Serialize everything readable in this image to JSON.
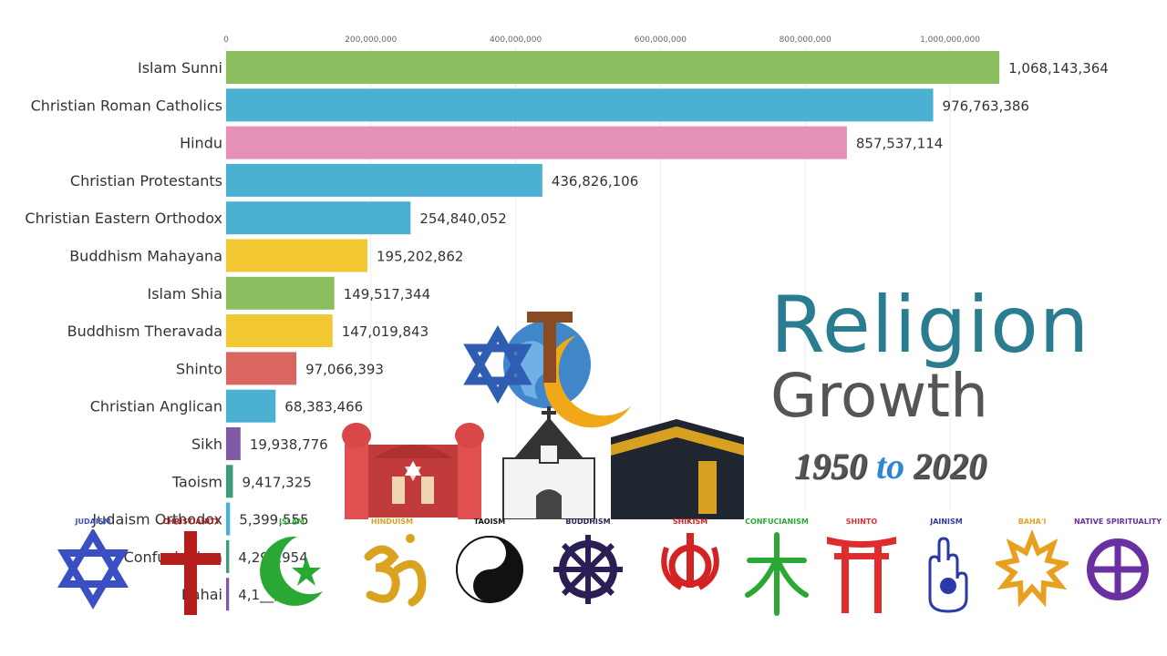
{
  "chart_data": {
    "type": "bar",
    "orientation": "horizontal",
    "title": "",
    "xlabel": "",
    "ylabel": "",
    "xlim": [
      0,
      1070000000
    ],
    "ticks": [
      {
        "value": 0,
        "label": "0"
      },
      {
        "value": 200000000,
        "label": "200,000,000"
      },
      {
        "value": 400000000,
        "label": "400,000,000"
      },
      {
        "value": 600000000,
        "label": "600,000,000"
      },
      {
        "value": 800000000,
        "label": "800,000,000"
      },
      {
        "value": 1000000000,
        "label": "1,000,000,000"
      }
    ],
    "grid": true,
    "bars": [
      {
        "category": "Islam Sunni",
        "value": 1068143364,
        "label": "1,068,143,364",
        "color": "#8cbf5f"
      },
      {
        "category": "Christian Roman Catholics",
        "value": 976763386,
        "label": "976,763,386",
        "color": "#4cb0d3"
      },
      {
        "category": "Hindu",
        "value": 857537114,
        "label": "857,537,114",
        "color": "#e590b5"
      },
      {
        "category": "Christian Protestants",
        "value": 436826106,
        "label": "436,826,106",
        "color": "#4cb0d3"
      },
      {
        "category": "Christian Eastern Orthodox",
        "value": 254840052,
        "label": "254,840,052",
        "color": "#4cb0d3"
      },
      {
        "category": "Buddhism Mahayana",
        "value": 195202862,
        "label": "195,202,862",
        "color": "#f2c832"
      },
      {
        "category": "Islam Shia",
        "value": 149517344,
        "label": "149,517,344",
        "color": "#8cbf5f"
      },
      {
        "category": "Buddhism Theravada",
        "value": 147019843,
        "label": "147,019,843",
        "color": "#f2c832"
      },
      {
        "category": "Shinto",
        "value": 97066393,
        "label": "97,066,393",
        "color": "#d9675f"
      },
      {
        "category": "Christian Anglican",
        "value": 68383466,
        "label": "68,383,466",
        "color": "#4cb0d3"
      },
      {
        "category": "Sikh",
        "value": 19938776,
        "label": "19,938,776",
        "color": "#7e5aa4"
      },
      {
        "category": "Taoism",
        "value": 9417325,
        "label": "9,417,325",
        "color": "#3f9b78"
      },
      {
        "category": "Judaism Orthodox",
        "value": 5399555,
        "label": "5,399,555",
        "color": "#4cb0d3"
      },
      {
        "category": "Confucianism",
        "value": 4295954,
        "label": "4,295,954",
        "color": "#3f9b78"
      },
      {
        "category": "Bahai",
        "value": 4100000,
        "label": "4,1__,6__",
        "color": "#7e5aa4"
      }
    ]
  },
  "title": {
    "line1": "Religion",
    "line2": "Growth",
    "year_start": "1950",
    "year_sep": "to",
    "year_end": "2020"
  },
  "symbols": [
    {
      "label": "JUDAISM",
      "icon": "star-of-david-icon",
      "color": "#3b4fc4"
    },
    {
      "label": "CHRISTIANITY",
      "icon": "cross-icon",
      "color": "#b51c1c"
    },
    {
      "label": "ISLAM",
      "icon": "crescent-star-icon",
      "color": "#2aa834"
    },
    {
      "label": "HINDUISM",
      "icon": "om-icon",
      "color": "#d9a320"
    },
    {
      "label": "TAOISM",
      "icon": "yin-yang-icon",
      "color": "#111111"
    },
    {
      "label": "BUDDHISM",
      "icon": "dharma-wheel-icon",
      "color": "#2a1e55"
    },
    {
      "label": "SHIKISM",
      "icon": "khanda-icon",
      "color": "#d42323"
    },
    {
      "label": "CONFUCIANISM",
      "icon": "confucian-glyph-icon",
      "color": "#2aa834"
    },
    {
      "label": "SHINTO",
      "icon": "torii-icon",
      "color": "#e02c2c"
    },
    {
      "label": "JAINISM",
      "icon": "jain-hand-icon",
      "color": "#2a3aa8"
    },
    {
      "label": "BAHA'I",
      "icon": "nine-point-star-icon",
      "color": "#e8a020"
    },
    {
      "label": "NATIVE SPIRITUALITY",
      "icon": "medicine-wheel-icon",
      "color": "#6a2fa0"
    }
  ]
}
